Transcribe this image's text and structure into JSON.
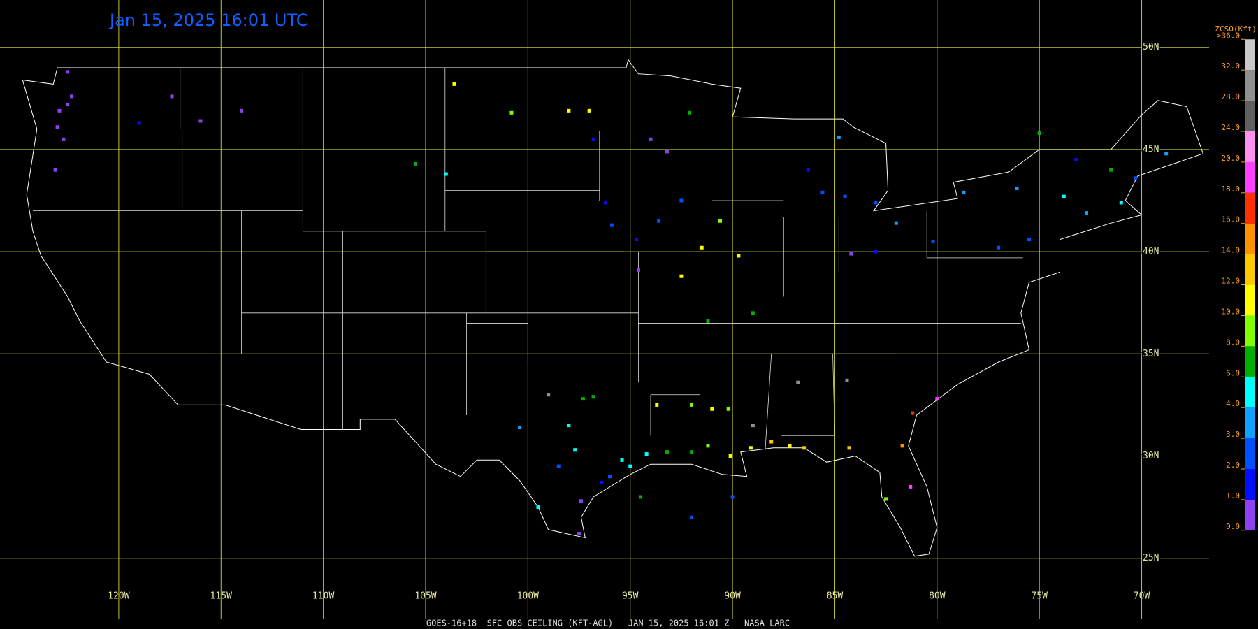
{
  "title": "Jan 15, 2025 16:01 UTC",
  "footer": "GOES-16+18  SFC OBS CEILING (KFT-AGL)   JAN 15, 2025 16:01 Z   NASA LARC",
  "longitudes": [
    {
      "value": -120,
      "label": "120W"
    },
    {
      "value": -115,
      "label": "115W"
    },
    {
      "value": -110,
      "label": "110W"
    },
    {
      "value": -105,
      "label": "105W"
    },
    {
      "value": -100,
      "label": "100W"
    },
    {
      "value": -95,
      "label": "95W"
    },
    {
      "value": -90,
      "label": "90W"
    },
    {
      "value": -85,
      "label": "85W"
    },
    {
      "value": -80,
      "label": "80W"
    },
    {
      "value": -75,
      "label": "75W"
    },
    {
      "value": -70,
      "label": "70W"
    }
  ],
  "latitudes": [
    {
      "value": 50,
      "label": "50N"
    },
    {
      "value": 45,
      "label": "45N"
    },
    {
      "value": 40,
      "label": "40N"
    },
    {
      "value": 35,
      "label": "35N"
    },
    {
      "value": 30,
      "label": "30N"
    },
    {
      "value": 25,
      "label": "25N"
    }
  ],
  "legend": {
    "title": "ZCSO(Kft)",
    "ticks": [
      {
        "value": 0,
        "label": "0.0"
      },
      {
        "value": 1,
        "label": "1.0"
      },
      {
        "value": 2,
        "label": "2.0"
      },
      {
        "value": 3,
        "label": "3.0"
      },
      {
        "value": 4,
        "label": "4.0"
      },
      {
        "value": 6,
        "label": "6.0"
      },
      {
        "value": 8,
        "label": "8.0"
      },
      {
        "value": 10,
        "label": "10.0"
      },
      {
        "value": 12,
        "label": "12.0"
      },
      {
        "value": 14,
        "label": "14.0"
      },
      {
        "value": 16,
        "label": "16.0"
      },
      {
        "value": 18,
        "label": "18.0"
      },
      {
        "value": 20,
        "label": "20.0"
      },
      {
        "value": 24,
        "label": "24.0"
      },
      {
        "value": 28,
        "label": "28.0"
      },
      {
        "value": 32,
        "label": "32.0"
      },
      {
        "value": 36,
        "label": ">36.0"
      }
    ],
    "colors": [
      "#9040f0",
      "#0010ff",
      "#0050ff",
      "#10a0ff",
      "#00ffff",
      "#00b000",
      "#80ff00",
      "#ffff00",
      "#ffc800",
      "#ff9000",
      "#ff3000",
      "#ff40ff",
      "#ff90f0",
      "#606060",
      "#909090",
      "#c8c8c8"
    ]
  },
  "stations": [
    {
      "lon": -122.3,
      "lat": 47.6,
      "ceiling": 0.5
    },
    {
      "lon": -122.5,
      "lat": 47.2,
      "ceiling": 0.5
    },
    {
      "lon": -122.9,
      "lat": 46.9,
      "ceiling": 0.5
    },
    {
      "lon": -123.0,
      "lat": 46.1,
      "ceiling": 0.8
    },
    {
      "lon": -122.7,
      "lat": 45.5,
      "ceiling": 0.5
    },
    {
      "lon": -123.1,
      "lat": 44.0,
      "ceiling": 0.7
    },
    {
      "lon": -122.5,
      "lat": 48.8,
      "ceiling": 0.6
    },
    {
      "lon": -117.4,
      "lat": 47.6,
      "ceiling": 0.4
    },
    {
      "lon": -116.0,
      "lat": 46.4,
      "ceiling": 0.6
    },
    {
      "lon": -119.0,
      "lat": 46.3,
      "ceiling": 1.5
    },
    {
      "lon": -114.0,
      "lat": 46.9,
      "ceiling": 0.5
    },
    {
      "lon": -100.8,
      "lat": 46.8,
      "ceiling": 9
    },
    {
      "lon": -98.0,
      "lat": 46.9,
      "ceiling": 10
    },
    {
      "lon": -97.0,
      "lat": 46.9,
      "ceiling": 11
    },
    {
      "lon": -103.6,
      "lat": 48.2,
      "ceiling": 10
    },
    {
      "lon": -96.8,
      "lat": 45.5,
      "ceiling": 1.5
    },
    {
      "lon": -105.5,
      "lat": 44.3,
      "ceiling": 7
    },
    {
      "lon": -104.0,
      "lat": 43.8,
      "ceiling": 5
    },
    {
      "lon": -93.2,
      "lat": 44.9,
      "ceiling": 0.5
    },
    {
      "lon": -94.0,
      "lat": 45.5,
      "ceiling": 0.5
    },
    {
      "lon": -93.6,
      "lat": 41.5,
      "ceiling": 2.5
    },
    {
      "lon": -92.5,
      "lat": 42.5,
      "ceiling": 2.0
    },
    {
      "lon": -95.9,
      "lat": 41.3,
      "ceiling": 2.0
    },
    {
      "lon": -96.2,
      "lat": 42.4,
      "ceiling": 1.5
    },
    {
      "lon": -94.6,
      "lat": 39.1,
      "ceiling": 0.5
    },
    {
      "lon": -94.7,
      "lat": 40.6,
      "ceiling": 1.0
    },
    {
      "lon": -92.1,
      "lat": 46.8,
      "ceiling": 7
    },
    {
      "lon": -89.7,
      "lat": 39.8,
      "ceiling": 10
    },
    {
      "lon": -90.6,
      "lat": 41.5,
      "ceiling": 9
    },
    {
      "lon": -91.5,
      "lat": 40.2,
      "ceiling": 10
    },
    {
      "lon": -92.5,
      "lat": 38.8,
      "ceiling": 11
    },
    {
      "lon": -89.0,
      "lat": 37.0,
      "ceiling": 7
    },
    {
      "lon": -91.2,
      "lat": 36.6,
      "ceiling": 6.5
    },
    {
      "lon": -85.6,
      "lat": 42.9,
      "ceiling": 2.5
    },
    {
      "lon": -84.5,
      "lat": 42.7,
      "ceiling": 2.0
    },
    {
      "lon": -83.0,
      "lat": 42.4,
      "ceiling": 2.0
    },
    {
      "lon": -86.3,
      "lat": 44.0,
      "ceiling": 1.8
    },
    {
      "lon": -84.8,
      "lat": 45.6,
      "ceiling": 3.0
    },
    {
      "lon": -82.0,
      "lat": 41.4,
      "ceiling": 3.0
    },
    {
      "lon": -80.2,
      "lat": 40.5,
      "ceiling": 2.3
    },
    {
      "lon": -78.7,
      "lat": 42.9,
      "ceiling": 3.0
    },
    {
      "lon": -76.1,
      "lat": 43.1,
      "ceiling": 3.5
    },
    {
      "lon": -77.0,
      "lat": 40.2,
      "ceiling": 2.0
    },
    {
      "lon": -75.5,
      "lat": 40.6,
      "ceiling": 2.2
    },
    {
      "lon": -73.8,
      "lat": 42.7,
      "ceiling": 5.0
    },
    {
      "lon": -72.7,
      "lat": 41.9,
      "ceiling": 3.5
    },
    {
      "lon": -71.0,
      "lat": 42.4,
      "ceiling": 4.5
    },
    {
      "lon": -70.3,
      "lat": 43.6,
      "ceiling": 2.5
    },
    {
      "lon": -68.8,
      "lat": 44.8,
      "ceiling": 3.0
    },
    {
      "lon": -73.2,
      "lat": 44.5,
      "ceiling": 1.8
    },
    {
      "lon": -83.0,
      "lat": 40.0,
      "ceiling": 1.5
    },
    {
      "lon": -84.2,
      "lat": 39.9,
      "ceiling": 0.8
    },
    {
      "lon": -90.1,
      "lat": 30.0,
      "ceiling": 11
    },
    {
      "lon": -89.1,
      "lat": 30.4,
      "ceiling": 10
    },
    {
      "lon": -88.1,
      "lat": 30.7,
      "ceiling": 12
    },
    {
      "lon": -87.2,
      "lat": 30.5,
      "ceiling": 11
    },
    {
      "lon": -86.5,
      "lat": 30.4,
      "ceiling": 12
    },
    {
      "lon": -91.2,
      "lat": 30.5,
      "ceiling": 8
    },
    {
      "lon": -92.0,
      "lat": 30.2,
      "ceiling": 7
    },
    {
      "lon": -93.2,
      "lat": 30.2,
      "ceiling": 6
    },
    {
      "lon": -94.2,
      "lat": 30.1,
      "ceiling": 5
    },
    {
      "lon": -91.0,
      "lat": 32.3,
      "ceiling": 10
    },
    {
      "lon": -92.0,
      "lat": 32.5,
      "ceiling": 9
    },
    {
      "lon": -93.7,
      "lat": 32.5,
      "ceiling": 11
    },
    {
      "lon": -90.2,
      "lat": 32.3,
      "ceiling": 8
    },
    {
      "lon": -95.4,
      "lat": 29.8,
      "ceiling": 4.5
    },
    {
      "lon": -95.0,
      "lat": 29.5,
      "ceiling": 5
    },
    {
      "lon": -96.0,
      "lat": 29.0,
      "ceiling": 2.5
    },
    {
      "lon": -97.7,
      "lat": 30.3,
      "ceiling": 4.0
    },
    {
      "lon": -98.5,
      "lat": 29.5,
      "ceiling": 2.0
    },
    {
      "lon": -97.4,
      "lat": 27.8,
      "ceiling": 0.5
    },
    {
      "lon": -97.5,
      "lat": 26.2,
      "ceiling": 0.6
    },
    {
      "lon": -99.5,
      "lat": 27.5,
      "ceiling": 4
    },
    {
      "lon": -96.4,
      "lat": 28.7,
      "ceiling": 1.5
    },
    {
      "lon": -97.3,
      "lat": 32.8,
      "ceiling": 7
    },
    {
      "lon": -96.8,
      "lat": 32.9,
      "ceiling": 7
    },
    {
      "lon": -98.0,
      "lat": 31.5,
      "ceiling": 5
    },
    {
      "lon": -100.4,
      "lat": 31.4,
      "ceiling": 3
    },
    {
      "lon": -81.7,
      "lat": 30.5,
      "ceiling": 15
    },
    {
      "lon": -81.2,
      "lat": 32.1,
      "ceiling": 17
    },
    {
      "lon": -80.0,
      "lat": 32.8,
      "ceiling": 19
    },
    {
      "lon": -82.5,
      "lat": 27.9,
      "ceiling": 8
    },
    {
      "lon": -81.3,
      "lat": 28.5,
      "ceiling": 19
    },
    {
      "lon": -84.3,
      "lat": 30.4,
      "ceiling": 13
    },
    {
      "lon": -99.0,
      "lat": 33.0,
      "ceiling": 30
    },
    {
      "lon": -86.8,
      "lat": 33.6,
      "ceiling": 29
    },
    {
      "lon": -84.4,
      "lat": 33.7,
      "ceiling": 30
    },
    {
      "lon": -89.0,
      "lat": 31.5,
      "ceiling": 28
    },
    {
      "lon": -92.0,
      "lat": 27.0,
      "ceiling": 2
    },
    {
      "lon": -90.0,
      "lat": 28.0,
      "ceiling": 2.5
    },
    {
      "lon": -94.5,
      "lat": 28.0,
      "ceiling": 6
    },
    {
      "lon": -71.5,
      "lat": 44.0,
      "ceiling": 7
    },
    {
      "lon": -75.0,
      "lat": 45.8,
      "ceiling": 6
    }
  ]
}
